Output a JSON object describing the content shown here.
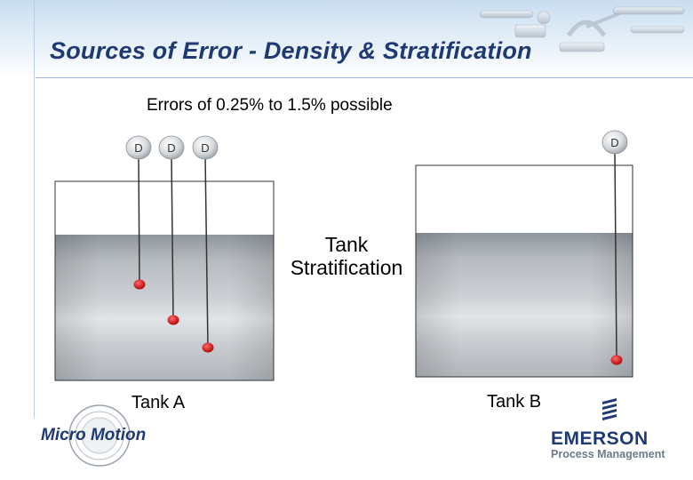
{
  "slide": {
    "title": "Sources of Error - Density & Stratification",
    "subtitle": "Errors of 0.25% to 1.5% possible",
    "stratification_label_line1": "Tank",
    "stratification_label_line2": "Stratification"
  },
  "tanks": [
    {
      "label": "Tank A",
      "probe_labels": [
        "D",
        "D",
        "D"
      ]
    },
    {
      "label": "Tank B",
      "probe_labels": [
        "D"
      ]
    }
  ],
  "logos": {
    "left_brand": "Micro Motion",
    "right_brand": "EMERSON",
    "right_tagline": "Process Management"
  },
  "colors": {
    "title": "#1f3a73",
    "sensor_dot": "#cc1111",
    "liquid_mid": "#c4c8cc"
  },
  "icons": [
    "density-probe-icon",
    "sensor-point-icon",
    "emerson-logo-icon",
    "micro-motion-seal-icon"
  ]
}
